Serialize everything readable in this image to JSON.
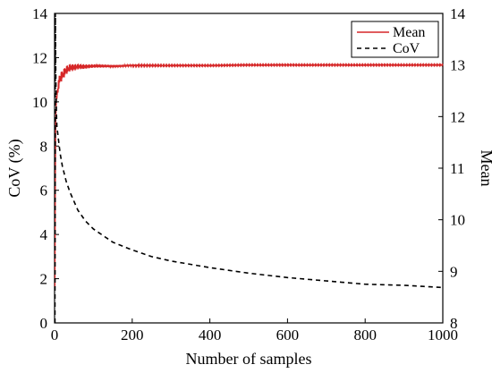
{
  "chart_data": {
    "type": "line",
    "title": "",
    "xlabel": "Number of samples",
    "ylabel_left": "CoV (%)",
    "ylabel_right": "Mean",
    "xlim": [
      0,
      1000
    ],
    "ylim_left": [
      0,
      14
    ],
    "ylim_right": [
      8,
      14
    ],
    "x_ticks": [
      "0",
      "200",
      "400",
      "600",
      "800",
      "1000"
    ],
    "y_left_ticks": [
      "0",
      "2",
      "4",
      "6",
      "8",
      "10",
      "12",
      "14"
    ],
    "y_right_ticks": [
      "8",
      "9",
      "10",
      "11",
      "12",
      "13",
      "14"
    ],
    "grid": false,
    "legend_position": "top-right",
    "legend": [
      {
        "label": "Mean",
        "style": "solid",
        "color": "#d62728"
      },
      {
        "label": "CoV",
        "style": "dashed",
        "color": "#000000"
      }
    ],
    "series": [
      {
        "name": "Mean",
        "axis": "right",
        "color": "#d62728",
        "x": [
          1,
          2,
          3,
          4,
          5,
          6,
          8,
          10,
          12,
          15,
          20,
          25,
          30,
          40,
          50,
          60,
          80,
          100,
          150,
          200,
          300,
          400,
          500,
          600,
          700,
          800,
          900,
          1000
        ],
        "values": [
          8.7,
          10.8,
          11.9,
          12.2,
          12.3,
          12.4,
          12.5,
          12.6,
          12.7,
          12.75,
          12.8,
          12.85,
          12.9,
          12.95,
          12.95,
          12.97,
          12.97,
          12.98,
          12.98,
          12.99,
          12.99,
          12.99,
          13.0,
          13.0,
          13.0,
          13.0,
          13.0,
          13.0
        ]
      },
      {
        "name": "CoV",
        "axis": "left",
        "color": "#000000",
        "x": [
          1,
          2,
          3,
          4,
          5,
          6,
          8,
          10,
          12,
          15,
          20,
          30,
          40,
          50,
          60,
          80,
          100,
          150,
          200,
          250,
          300,
          400,
          500,
          600,
          700,
          800,
          900,
          1000
        ],
        "values": [
          0.0,
          14.0,
          11.5,
          10.2,
          9.4,
          8.9,
          8.6,
          8.3,
          8.0,
          7.6,
          7.1,
          6.4,
          5.9,
          5.5,
          5.1,
          4.6,
          4.25,
          3.65,
          3.3,
          3.0,
          2.8,
          2.5,
          2.25,
          2.05,
          1.9,
          1.75,
          1.7,
          1.6
        ]
      }
    ]
  }
}
